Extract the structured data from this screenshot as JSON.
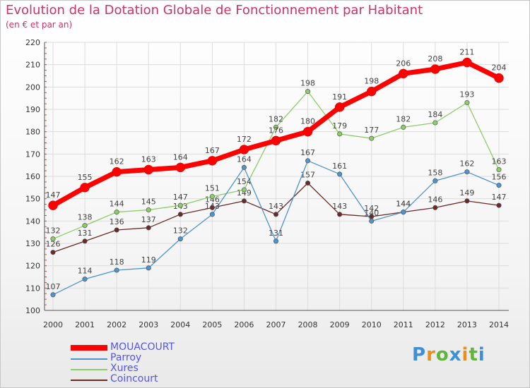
{
  "chart_data": {
    "type": "line",
    "title": "Evolution de la Dotation Globale de Fonctionnement par Habitant",
    "subtitle": "(en € et par an)",
    "xlabel": "",
    "ylabel": "",
    "ylim": [
      100,
      220
    ],
    "yticks": [
      100,
      110,
      120,
      130,
      140,
      150,
      160,
      170,
      180,
      190,
      200,
      210,
      220
    ],
    "x": [
      "2000",
      "2001",
      "2002",
      "2003",
      "2004",
      "2005",
      "2006",
      "2007",
      "2008",
      "2009",
      "2010",
      "2011",
      "2012",
      "2013",
      "2014"
    ],
    "grid": true,
    "legend_position": "bottom-left",
    "series": [
      {
        "name": "MOUACOURT",
        "color": "#ff0000",
        "values": [
          147,
          155,
          162,
          163,
          164,
          167,
          172,
          176,
          180,
          191,
          198,
          206,
          208,
          211,
          204
        ]
      },
      {
        "name": "Parroy",
        "color": "#4e94d0",
        "values": [
          107,
          114,
          118,
          119,
          132,
          143,
          164,
          131,
          167,
          161,
          140,
          144,
          158,
          162,
          156
        ]
      },
      {
        "name": "Xures",
        "color": "#8ccd66",
        "values": [
          132,
          138,
          144,
          145,
          147,
          151,
          154,
          182,
          198,
          179,
          177,
          182,
          184,
          193,
          163
        ]
      },
      {
        "name": "Coincourt",
        "color": "#6b2a2a",
        "values": [
          126,
          131,
          136,
          137,
          143,
          146,
          149,
          143,
          157,
          143,
          142,
          144,
          146,
          149,
          147
        ]
      }
    ]
  },
  "logo": {
    "letters": [
      "P",
      "r",
      "o",
      "x",
      "i",
      "t",
      "i"
    ],
    "colors": [
      "#3d8fd6",
      "#e8901e",
      "#62b340",
      "#3d8fd6",
      "#e8901e",
      "#62b340",
      "#3d8fd6"
    ]
  }
}
